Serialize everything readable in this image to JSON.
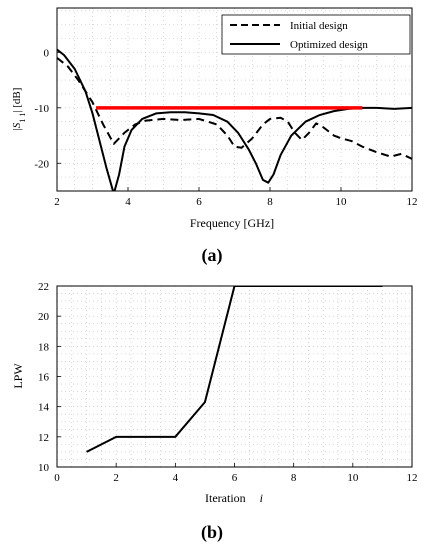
{
  "colors": {
    "background": "#ffffff",
    "curve": "#000000",
    "grid": "#bdbdbd",
    "spec": "#ff0000"
  },
  "chart_data": [
    {
      "type": "line",
      "panel_label": "(a)",
      "title": "",
      "xlabel": "Frequency [GHz]",
      "ylabel": "|S11| [dB]",
      "xlim": [
        2,
        12
      ],
      "ylim": [
        -25,
        8
      ],
      "xticks": [
        2,
        4,
        6,
        8,
        10,
        12
      ],
      "yticks": [
        0,
        -10,
        -20
      ],
      "grid": true,
      "legend_position": "top-right",
      "series": [
        {
          "name": "Initial design",
          "style": "dashed",
          "x": [
            2.0,
            2.3,
            2.6,
            3.0,
            3.3,
            3.6,
            3.9,
            4.2,
            4.5,
            5.0,
            5.5,
            6.0,
            6.5,
            6.8,
            7.0,
            7.2,
            7.5,
            7.8,
            8.0,
            8.3,
            8.5,
            8.7,
            8.9,
            9.1,
            9.3,
            9.5,
            9.8,
            10.0,
            10.3,
            10.6,
            11.0,
            11.4,
            11.7,
            12.0
          ],
          "y": [
            -1.0,
            -2.5,
            -5.0,
            -9.0,
            -13.0,
            -16.5,
            -14.5,
            -13.0,
            -12.3,
            -12.0,
            -12.2,
            -12.0,
            -13.0,
            -15.0,
            -17.0,
            -17.2,
            -15.5,
            -13.0,
            -12.0,
            -11.8,
            -12.5,
            -14.5,
            -15.8,
            -14.5,
            -12.8,
            -13.5,
            -15.0,
            -15.5,
            -16.0,
            -17.0,
            -18.0,
            -18.8,
            -18.3,
            -19.2
          ]
        },
        {
          "name": "Optimized design",
          "style": "solid",
          "x": [
            2.0,
            2.2,
            2.5,
            2.8,
            3.0,
            3.2,
            3.4,
            3.6,
            3.75,
            3.9,
            4.1,
            4.4,
            4.8,
            5.2,
            5.6,
            6.0,
            6.4,
            6.8,
            7.1,
            7.4,
            7.6,
            7.8,
            7.95,
            8.1,
            8.3,
            8.6,
            9.0,
            9.4,
            9.8,
            10.2,
            10.6,
            11.0,
            11.5,
            12.0
          ],
          "y": [
            0.5,
            -0.5,
            -3.0,
            -7.0,
            -11.0,
            -16.0,
            -21.0,
            -25.5,
            -22.0,
            -17.0,
            -14.0,
            -12.0,
            -11.0,
            -10.8,
            -10.8,
            -11.0,
            -11.3,
            -12.5,
            -14.5,
            -17.5,
            -20.0,
            -23.0,
            -23.5,
            -22.0,
            -18.5,
            -15.0,
            -12.5,
            -11.3,
            -10.6,
            -10.2,
            -10.0,
            -10.0,
            -10.2,
            -10.0
          ]
        },
        {
          "name": "",
          "style": "spec",
          "x": [
            3.1,
            10.6
          ],
          "y": [
            -10,
            -10
          ]
        }
      ]
    },
    {
      "type": "line",
      "panel_label": "(b)",
      "title": "",
      "xlabel": "Iteration",
      "xlabel_symbol": "i",
      "ylabel": "LPW",
      "xlim": [
        0,
        12
      ],
      "ylim": [
        10,
        22
      ],
      "xticks": [
        0,
        2,
        4,
        6,
        8,
        10,
        12
      ],
      "yticks": [
        10,
        12,
        14,
        16,
        18,
        20,
        22
      ],
      "grid": true,
      "series": [
        {
          "name": "",
          "style": "solid",
          "x": [
            1,
            2,
            3,
            4,
            5,
            6,
            7,
            8,
            9,
            10,
            11
          ],
          "y": [
            11,
            12,
            12,
            12,
            14.3,
            22,
            22,
            22,
            22,
            22,
            22
          ]
        }
      ]
    }
  ]
}
